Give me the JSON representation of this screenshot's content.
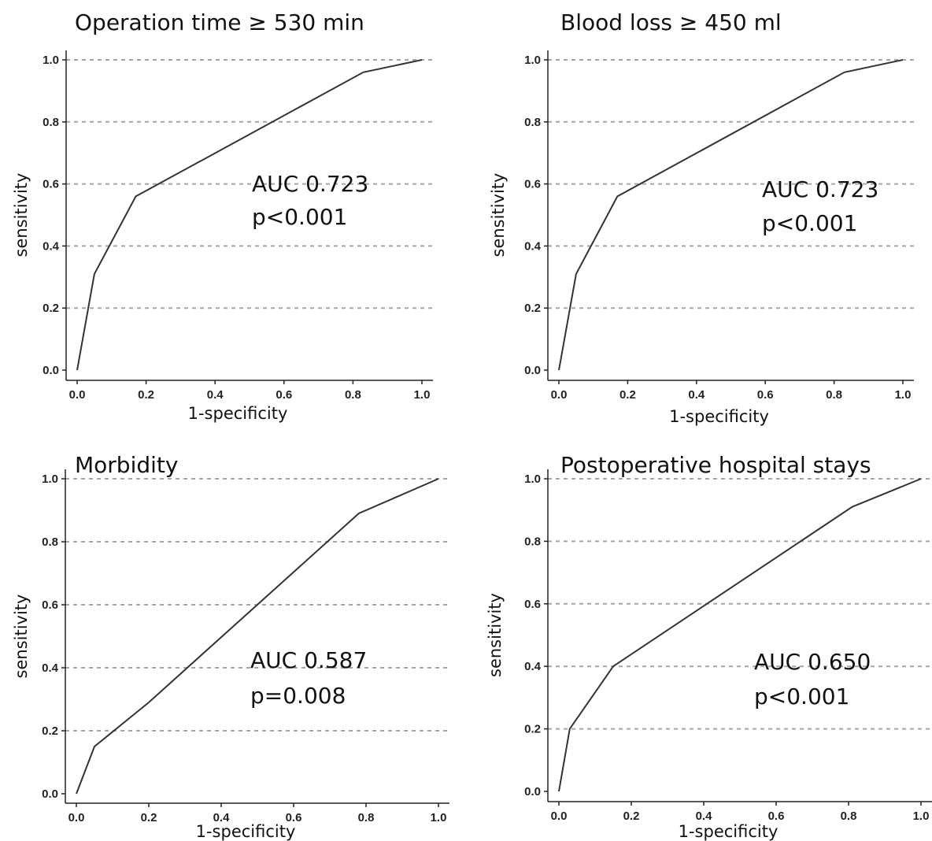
{
  "chart_data": [
    {
      "type": "line",
      "title": "Operation time ≥ 530 min",
      "xlabel": "1-specificity",
      "ylabel": "sensitivity",
      "xlim": [
        0,
        1
      ],
      "ylim": [
        0,
        1
      ],
      "xticks": [
        "0.0",
        "0.2",
        "0.4",
        "0.6",
        "0.8",
        "1.0"
      ],
      "yticks": [
        "0.0",
        "0.2",
        "0.4",
        "0.6",
        "0.8",
        "1.0"
      ],
      "grid": "horizontal dashed",
      "annotation": [
        "AUC 0.723",
        "p<0.001"
      ],
      "series": [
        {
          "x": [
            0.0,
            0.05,
            0.17,
            0.83,
            1.0
          ],
          "y": [
            0.0,
            0.31,
            0.56,
            0.96,
            1.0
          ]
        }
      ]
    },
    {
      "type": "line",
      "title": "Blood loss ≥ 450 ml",
      "xlabel": "1-specificity",
      "ylabel": "sensitivity",
      "xlim": [
        0,
        1
      ],
      "ylim": [
        0,
        1
      ],
      "xticks": [
        "0.0",
        "0.2",
        "0.4",
        "0.6",
        "0.8",
        "1.0"
      ],
      "yticks": [
        "0.0",
        "0.2",
        "0.4",
        "0.6",
        "0.8",
        "1.0"
      ],
      "grid": "horizontal dashed",
      "annotation": [
        "AUC 0.723",
        "p<0.001"
      ],
      "series": [
        {
          "x": [
            0.0,
            0.05,
            0.17,
            0.83,
            1.0
          ],
          "y": [
            0.0,
            0.31,
            0.56,
            0.96,
            1.0
          ]
        }
      ]
    },
    {
      "type": "line",
      "title": "Morbidity",
      "xlabel": "1-specificity",
      "ylabel": "sensitivity",
      "xlim": [
        0,
        1
      ],
      "ylim": [
        0,
        1
      ],
      "xticks": [
        "0.0",
        "0.2",
        "0.4",
        "0.6",
        "0.8",
        "1.0"
      ],
      "yticks": [
        "0.0",
        "0.2",
        "0.4",
        "0.6",
        "0.8",
        "1.0"
      ],
      "grid": "horizontal dashed",
      "annotation": [
        "AUC 0.587",
        "p=0.008"
      ],
      "series": [
        {
          "x": [
            0.0,
            0.05,
            0.2,
            0.78,
            1.0
          ],
          "y": [
            0.0,
            0.15,
            0.29,
            0.89,
            1.0
          ]
        }
      ]
    },
    {
      "type": "line",
      "title": "Postoperative hospital stays",
      "xlabel": "1-specificity",
      "ylabel": "sensitivity",
      "xlim": [
        0,
        1
      ],
      "ylim": [
        0,
        1
      ],
      "xticks": [
        "0.0",
        "0.2",
        "0.4",
        "0.6",
        "0.8",
        "1.0"
      ],
      "yticks": [
        "0.0",
        "0.2",
        "0.4",
        "0.6",
        "0.8",
        "1.0"
      ],
      "grid": "horizontal dashed",
      "annotation": [
        "AUC 0.650",
        "p<0.001"
      ],
      "series": [
        {
          "x": [
            0.0,
            0.03,
            0.15,
            0.81,
            1.0
          ],
          "y": [
            0.0,
            0.2,
            0.4,
            0.91,
            1.0
          ]
        }
      ]
    }
  ],
  "colors": {
    "curve": "#333333",
    "grid": "#a6a6a6",
    "axis": "#222222",
    "text": "#111111"
  }
}
